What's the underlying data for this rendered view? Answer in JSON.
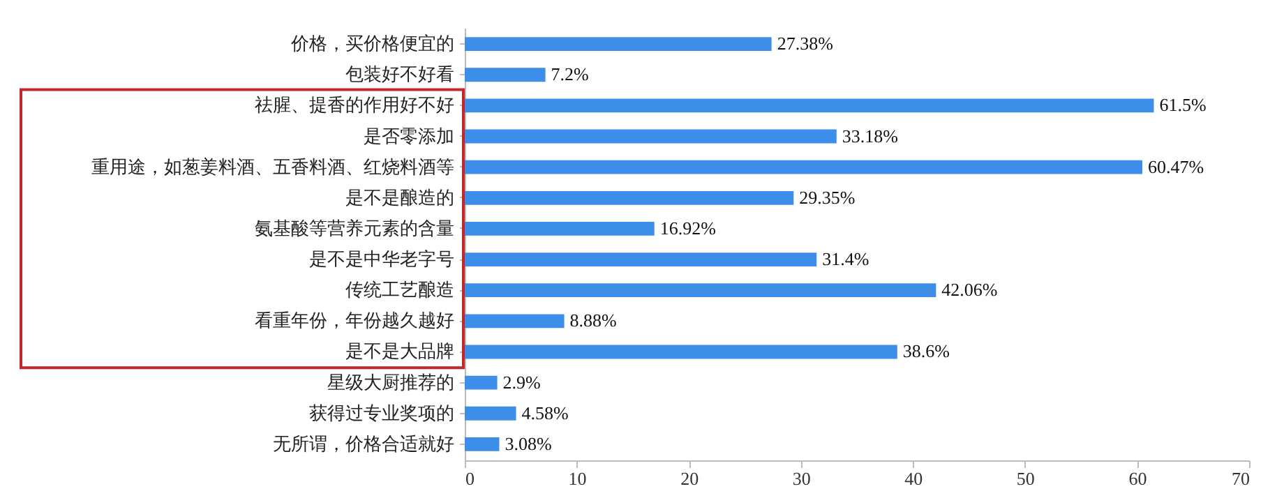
{
  "chart_data": {
    "type": "bar",
    "orientation": "horizontal",
    "categories": [
      "价格，买价格便宜的",
      "包装好不好看",
      "祛腥、提香的作用好不好",
      "是否零添加",
      "重用途，如葱姜料酒、五香料酒、红烧料酒等",
      "是不是酿造的",
      "氨基酸等营养元素的含量",
      "是不是中华老字号",
      "传统工艺酿造",
      "看重年份，年份越久越好",
      "是不是大品牌",
      "星级大厨推荐的",
      "获得过专业奖项的",
      "无所谓，价格合适就好"
    ],
    "values": [
      27.38,
      7.2,
      61.5,
      33.18,
      60.47,
      29.35,
      16.92,
      31.4,
      42.06,
      8.88,
      38.6,
      2.9,
      4.58,
      3.08
    ],
    "value_labels": [
      "27.38%",
      "7.2%",
      "61.5%",
      "33.18%",
      "60.47%",
      "29.35%",
      "16.92%",
      "31.4%",
      "42.06%",
      "8.88%",
      "38.6%",
      "2.9%",
      "4.58%",
      "3.08%"
    ],
    "color": "#3d8ee8",
    "xlim": [
      0,
      70
    ],
    "xticks": [
      0,
      10,
      20,
      30,
      40,
      50,
      60,
      70
    ],
    "grid": false
  }
}
